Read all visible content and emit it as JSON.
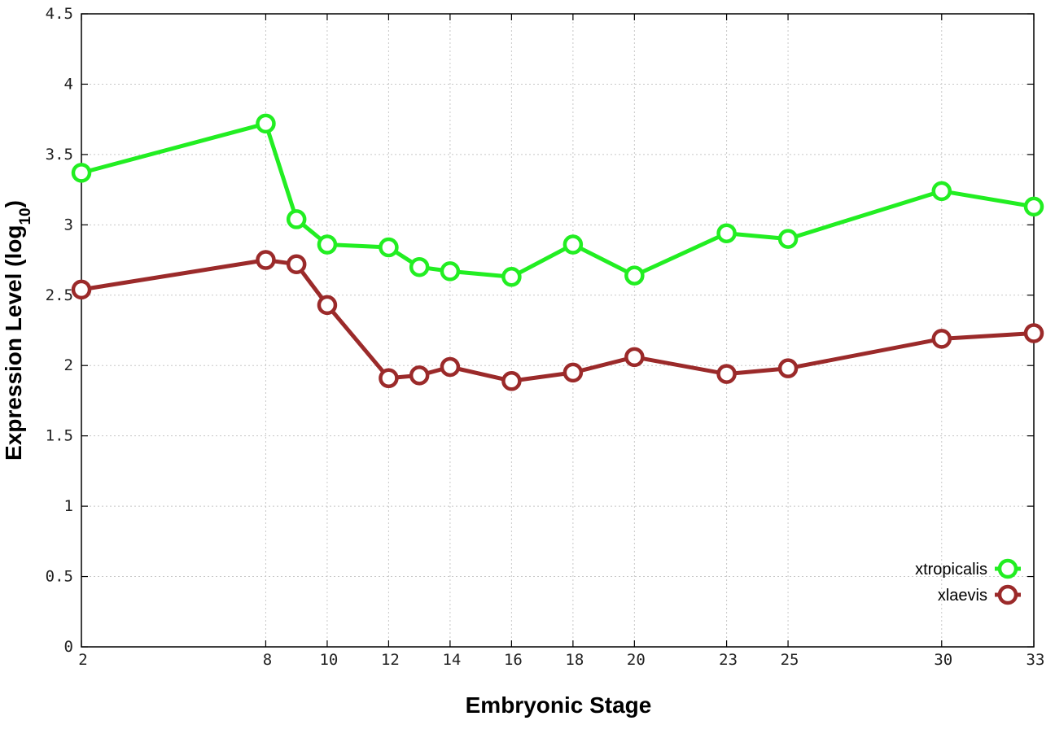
{
  "chart_data": {
    "type": "line",
    "title": "",
    "xlabel": "Embryonic Stage",
    "ylabel": "Expression Level (log",
    "ylabel_sub": "10",
    "ylabel_close": ")",
    "xlim": [
      2,
      33
    ],
    "ylim": [
      0,
      4.5
    ],
    "x_ticks": [
      2,
      8,
      10,
      12,
      14,
      16,
      18,
      20,
      23,
      25,
      30,
      33
    ],
    "y_ticks": [
      0,
      0.5,
      1,
      1.5,
      2,
      2.5,
      3,
      3.5,
      4,
      4.5
    ],
    "y_tick_labels": [
      "0",
      "0.5",
      "1",
      "1.5",
      "2",
      "2.5",
      "3",
      "3.5",
      "4",
      "4.5"
    ],
    "grid": true,
    "legend_position": "bottom-right",
    "x": [
      2,
      8,
      9,
      10,
      12,
      13,
      14,
      16,
      18,
      20,
      23,
      25,
      30,
      33
    ],
    "series": [
      {
        "name": "xtropicalis",
        "color": "#22ee22",
        "values": [
          3.37,
          3.72,
          3.04,
          2.86,
          2.84,
          2.7,
          2.67,
          2.63,
          2.86,
          2.64,
          2.94,
          2.9,
          3.24,
          3.13
        ]
      },
      {
        "name": "xlaevis",
        "color": "#9b2a2a",
        "values": [
          2.54,
          2.75,
          2.72,
          2.43,
          1.91,
          1.93,
          1.99,
          1.89,
          1.95,
          2.06,
          1.94,
          1.98,
          2.19,
          2.23
        ]
      }
    ]
  }
}
